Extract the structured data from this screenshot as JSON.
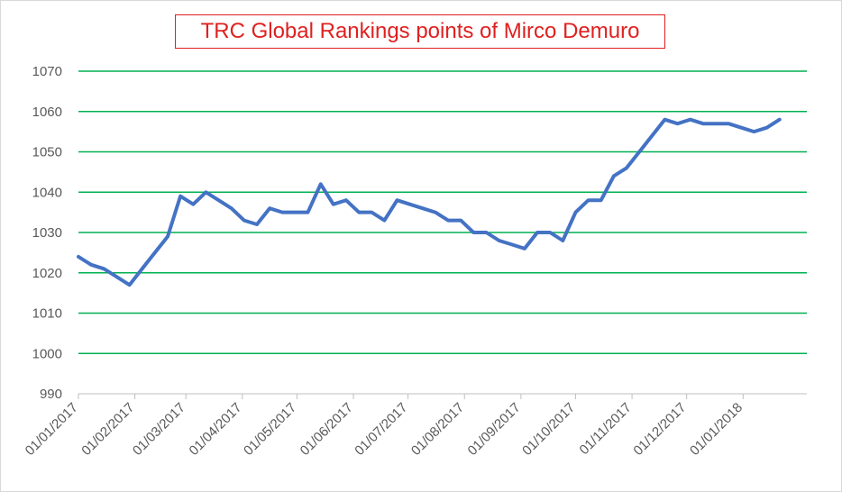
{
  "chart_data": {
    "type": "line",
    "title": "TRC Global Rankings points of Mirco Demuro",
    "xlabel": "",
    "ylabel": "",
    "ylim": [
      990,
      1070
    ],
    "y_ticks": [
      "990",
      "1000",
      "1010",
      "1020",
      "1030",
      "1040",
      "1050",
      "1060",
      "1070"
    ],
    "x_range": [
      "2017-01-01",
      "2018-02-05"
    ],
    "x_ticks": [
      {
        "label": "01/01/2017",
        "date": "2017-01-01"
      },
      {
        "label": "01/02/2017",
        "date": "2017-02-01"
      },
      {
        "label": "01/03/2017",
        "date": "2017-03-01"
      },
      {
        "label": "01/04/2017",
        "date": "2017-04-01"
      },
      {
        "label": "01/05/2017",
        "date": "2017-05-01"
      },
      {
        "label": "01/06/2017",
        "date": "2017-06-01"
      },
      {
        "label": "01/07/2017",
        "date": "2017-07-01"
      },
      {
        "label": "01/08/2017",
        "date": "2017-08-01"
      },
      {
        "label": "01/09/2017",
        "date": "2017-09-01"
      },
      {
        "label": "01/10/2017",
        "date": "2017-10-01"
      },
      {
        "label": "01/11/2017",
        "date": "2017-11-01"
      },
      {
        "label": "01/12/2017",
        "date": "2017-12-01"
      },
      {
        "label": "01/01/2018",
        "date": "2018-01-01"
      }
    ],
    "grid": true,
    "series": [
      {
        "color": "#4472c4",
        "points": [
          [
            "2017-01-01",
            1024
          ],
          [
            "2017-01-08",
            1022
          ],
          [
            "2017-01-15",
            1021
          ],
          [
            "2017-01-22",
            1019
          ],
          [
            "2017-01-29",
            1017
          ],
          [
            "2017-02-05",
            1021
          ],
          [
            "2017-02-12",
            1025
          ],
          [
            "2017-02-19",
            1029
          ],
          [
            "2017-02-26",
            1039
          ],
          [
            "2017-03-05",
            1037
          ],
          [
            "2017-03-12",
            1040
          ],
          [
            "2017-03-19",
            1038
          ],
          [
            "2017-03-26",
            1036
          ],
          [
            "2017-04-02",
            1033
          ],
          [
            "2017-04-09",
            1032
          ],
          [
            "2017-04-16",
            1036
          ],
          [
            "2017-04-23",
            1035
          ],
          [
            "2017-04-30",
            1035
          ],
          [
            "2017-05-07",
            1035
          ],
          [
            "2017-05-14",
            1042
          ],
          [
            "2017-05-21",
            1037
          ],
          [
            "2017-05-28",
            1038
          ],
          [
            "2017-06-04",
            1035
          ],
          [
            "2017-06-11",
            1035
          ],
          [
            "2017-06-18",
            1033
          ],
          [
            "2017-06-25",
            1038
          ],
          [
            "2017-07-02",
            1037
          ],
          [
            "2017-07-09",
            1036
          ],
          [
            "2017-07-16",
            1035
          ],
          [
            "2017-07-23",
            1033
          ],
          [
            "2017-07-30",
            1033
          ],
          [
            "2017-08-06",
            1030
          ],
          [
            "2017-08-13",
            1030
          ],
          [
            "2017-08-20",
            1028
          ],
          [
            "2017-08-27",
            1027
          ],
          [
            "2017-09-03",
            1026
          ],
          [
            "2017-09-10",
            1030
          ],
          [
            "2017-09-17",
            1030
          ],
          [
            "2017-09-24",
            1028
          ],
          [
            "2017-10-01",
            1035
          ],
          [
            "2017-10-08",
            1038
          ],
          [
            "2017-10-15",
            1038
          ],
          [
            "2017-10-22",
            1044
          ],
          [
            "2017-10-29",
            1046
          ],
          [
            "2017-11-05",
            1050
          ],
          [
            "2017-11-12",
            1054
          ],
          [
            "2017-11-19",
            1058
          ],
          [
            "2017-11-26",
            1057
          ],
          [
            "2017-12-03",
            1058
          ],
          [
            "2017-12-10",
            1057
          ],
          [
            "2017-12-17",
            1057
          ],
          [
            "2017-12-24",
            1057
          ],
          [
            "2017-12-31",
            1056
          ],
          [
            "2018-01-07",
            1055
          ],
          [
            "2018-01-14",
            1056
          ],
          [
            "2018-01-21",
            1058
          ]
        ]
      }
    ],
    "colors": {
      "grid": "#00b050",
      "line": "#4472c4",
      "title": "#e02020",
      "axis": "#bfbfbf"
    }
  }
}
